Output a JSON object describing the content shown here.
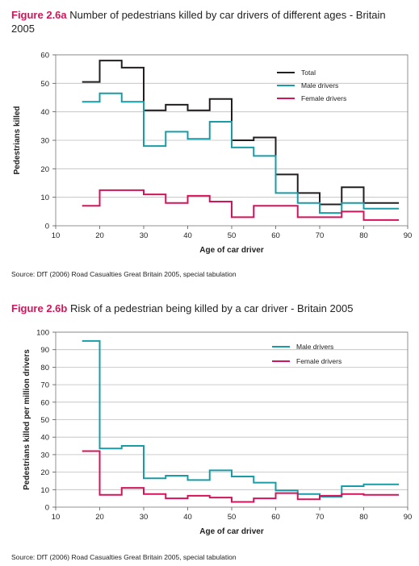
{
  "chart_data": [
    {
      "type": "line",
      "step": true,
      "figure_number": "Figure 2.6a",
      "title": "Number of pedestrians killed by car drivers of different ages - Britain 2005",
      "xlabel": "Age of car driver",
      "ylabel": "Pedestrians killed",
      "xlim": [
        10,
        90
      ],
      "ylim": [
        0,
        60
      ],
      "xticks": [
        10,
        20,
        30,
        40,
        50,
        60,
        70,
        80,
        90
      ],
      "yticks": [
        0,
        10,
        20,
        30,
        40,
        50,
        60
      ],
      "grid": "horizontal",
      "legend_position": "top-right",
      "bin_edges": [
        16,
        20,
        25,
        30,
        35,
        40,
        45,
        50,
        55,
        60,
        65,
        70,
        75,
        80,
        88
      ],
      "series": [
        {
          "name": "Total",
          "color": "#231f20",
          "values": [
            50.5,
            58,
            55.5,
            40.5,
            42.5,
            40.5,
            44.5,
            30,
            31,
            18,
            11.5,
            7.5,
            13.5,
            8
          ]
        },
        {
          "name": "Male drivers",
          "color": "#1a9ca6",
          "values": [
            43.5,
            46.5,
            43.5,
            28,
            33,
            30.5,
            36.5,
            27.5,
            24.5,
            11.5,
            8,
            4.5,
            8,
            6
          ]
        },
        {
          "name": "Female drivers",
          "color": "#d4145a",
          "values": [
            7,
            12.5,
            12.5,
            11,
            8,
            10.5,
            8.5,
            3,
            7,
            7,
            3,
            3,
            5,
            2
          ]
        }
      ],
      "source": "Source: DfT (2006) Road Casualties Great Britain 2005, special tabulation"
    },
    {
      "type": "line",
      "step": true,
      "figure_number": "Figure 2.6b",
      "title": "Risk of a pedestrian being killed by a car driver - Britain 2005",
      "xlabel": "Age of car driver",
      "ylabel": "Pedestrians killed per million drivers",
      "xlim": [
        10,
        90
      ],
      "ylim": [
        0,
        100
      ],
      "xticks": [
        10,
        20,
        30,
        40,
        50,
        60,
        70,
        80,
        90
      ],
      "yticks": [
        0,
        10,
        20,
        30,
        40,
        50,
        60,
        70,
        80,
        90,
        100
      ],
      "grid": "horizontal",
      "legend_position": "top-right",
      "bin_edges": [
        16,
        20,
        25,
        30,
        35,
        40,
        45,
        50,
        55,
        60,
        65,
        70,
        75,
        80,
        88
      ],
      "series": [
        {
          "name": "Male drivers",
          "color": "#1a9ca6",
          "values": [
            95,
            33.5,
            35,
            16.5,
            18,
            15.5,
            21,
            17.5,
            14,
            9.5,
            7.5,
            6,
            12,
            13
          ]
        },
        {
          "name": "Female drivers",
          "color": "#d4145a",
          "values": [
            32,
            7,
            11,
            7.5,
            5,
            6.5,
            5.5,
            3,
            5,
            8,
            4.5,
            6.5,
            7.5,
            7
          ]
        }
      ],
      "source": "Source: DfT (2006) Road Casualties Great Britain 2005, special tabulation"
    }
  ]
}
